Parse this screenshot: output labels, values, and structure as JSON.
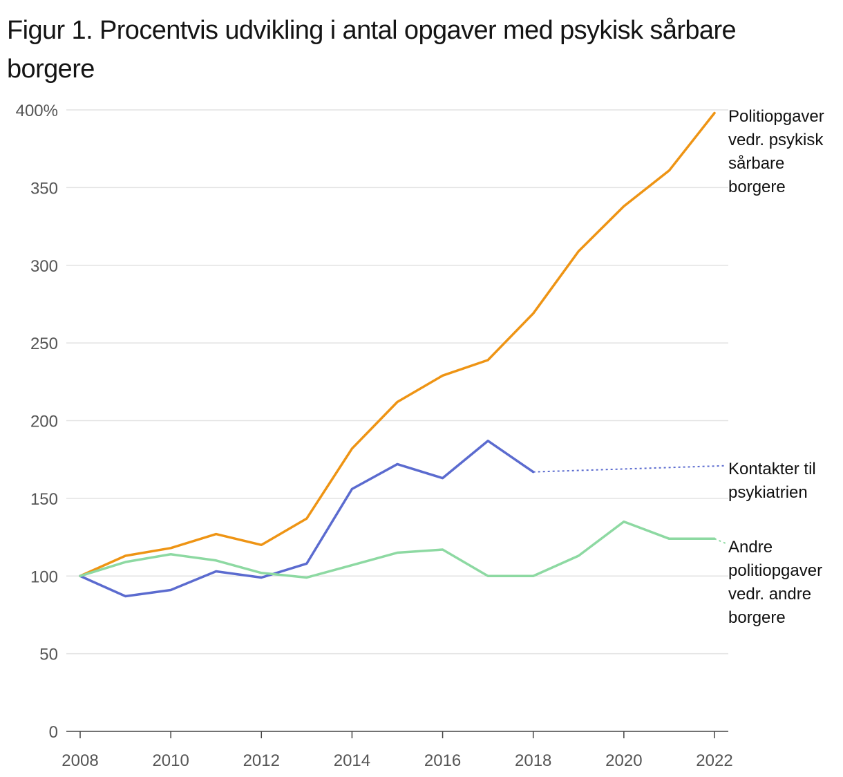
{
  "title": "Figur 1. Procentvis udvikling i antal opgaver med psykisk sårbare borgere",
  "chart_data": {
    "type": "line",
    "title": "Figur 1. Procentvis udvikling i antal opgaver med psykisk sårbare borgere",
    "xlabel": "",
    "ylabel": "",
    "x": [
      2008,
      2009,
      2010,
      2011,
      2012,
      2013,
      2014,
      2015,
      2016,
      2017,
      2018,
      2019,
      2020,
      2021,
      2022
    ],
    "xlim": [
      2008,
      2022
    ],
    "ylim": [
      0,
      400
    ],
    "x_tick_labels": [
      "2008",
      "2010",
      "2012",
      "2014",
      "2016",
      "2018",
      "2020",
      "2022"
    ],
    "y_tick_labels": [
      "0",
      "50",
      "100",
      "150",
      "200",
      "250",
      "300",
      "350",
      "400%"
    ],
    "y_ticks": [
      0,
      50,
      100,
      150,
      200,
      250,
      300,
      350,
      400
    ],
    "grid": true,
    "legend": "direct labels at right",
    "series": [
      {
        "name": "Politiopgaver vedr. psykisk sårbare borgere",
        "label_lines": [
          "Politiopgaver",
          "vedr. psykisk",
          "sårbare",
          "borgere"
        ],
        "color": "#ee9414",
        "values": [
          100,
          113,
          118,
          127,
          120,
          137,
          182,
          212,
          229,
          239,
          269,
          309,
          338,
          361,
          398
        ]
      },
      {
        "name": "Kontakter til psykiatrien",
        "label_lines": [
          "Kontakter til",
          "psykiatrien"
        ],
        "color": "#5b6bcf",
        "values": [
          100,
          87,
          91,
          103,
          99,
          108,
          156,
          172,
          163,
          187,
          167,
          null,
          null,
          null,
          null
        ],
        "dotted_extension": {
          "from": [
            2018,
            167
          ],
          "to": [
            2022.25,
            171
          ]
        }
      },
      {
        "name": "Andre politiopgaver vedr. andre borgere",
        "label_lines": [
          "Andre",
          "politiopgaver",
          "vedr. andre",
          "borgere"
        ],
        "color": "#8dd9a2",
        "values": [
          100,
          109,
          114,
          110,
          102,
          99,
          107,
          115,
          117,
          100,
          100,
          113,
          135,
          124,
          124
        ],
        "dotted_extension": {
          "from": [
            2022,
            124
          ],
          "to": [
            2022.25,
            121
          ]
        }
      }
    ]
  }
}
